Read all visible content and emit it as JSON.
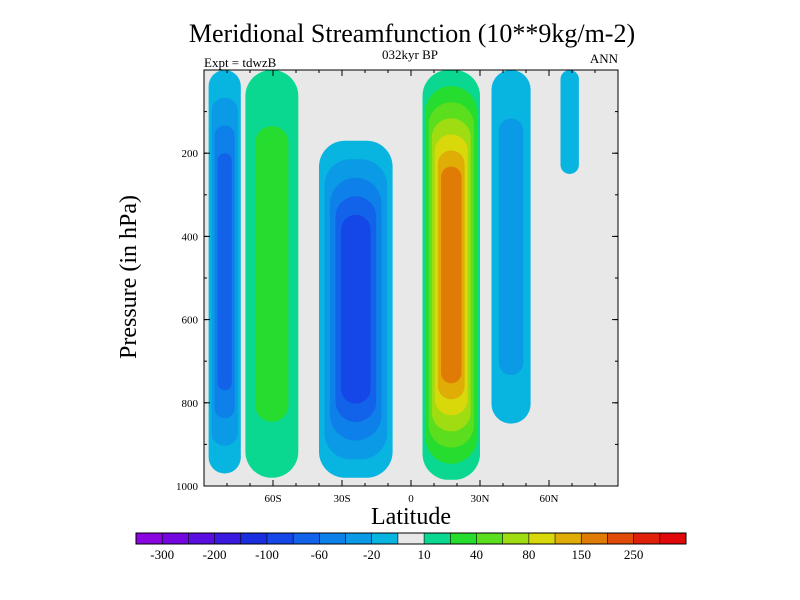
{
  "chart_data": {
    "type": "heatmap",
    "title": "Meridional Streamfunction (10**9kg/m-2)",
    "subtitle_center": "032kyr BP",
    "subtitle_left": "Expt = tdwzB",
    "subtitle_right": "ANN",
    "xlabel": "Latitude",
    "ylabel": "Pressure (in hPa)",
    "x_ticks": [
      {
        "value": -60,
        "label": "60S"
      },
      {
        "value": -30,
        "label": "30S"
      },
      {
        "value": 0,
        "label": "0"
      },
      {
        "value": 30,
        "label": "30N"
      },
      {
        "value": 60,
        "label": "60N"
      }
    ],
    "y_ticks": [
      {
        "value": 200,
        "label": "200"
      },
      {
        "value": 400,
        "label": "400"
      },
      {
        "value": 600,
        "label": "600"
      },
      {
        "value": 800,
        "label": "800"
      },
      {
        "value": 1000,
        "label": "1000"
      }
    ],
    "xlim": [
      -90,
      90
    ],
    "ylim": [
      0,
      1000
    ],
    "y_inverted": true,
    "colorbar": {
      "levels": [
        -300,
        -250,
        -200,
        -150,
        -100,
        -80,
        -60,
        -40,
        -20,
        -10,
        10,
        20,
        40,
        60,
        80,
        100,
        150,
        200,
        250,
        300
      ],
      "labels": [
        {
          "after_level": -300,
          "text": "-300"
        },
        {
          "after_level": -200,
          "text": "-200"
        },
        {
          "after_level": -100,
          "text": "-100"
        },
        {
          "after_level": -60,
          "text": "-60"
        },
        {
          "after_level": -20,
          "text": "-20"
        },
        {
          "after_level": 10,
          "text": "10"
        },
        {
          "after_level": 40,
          "text": "40"
        },
        {
          "after_level": 80,
          "text": "80"
        },
        {
          "after_level": 150,
          "text": "150"
        },
        {
          "after_level": 250,
          "text": "250"
        }
      ],
      "colors": [
        "#8a06e0",
        "#7406e0",
        "#5a0ee0",
        "#3a1ae0",
        "#1a2ee0",
        "#1446e8",
        "#1262ea",
        "#0e80ea",
        "#0a9ae6",
        "#08b4e0",
        "#e8e8e8",
        "#0ad890",
        "#26dc2e",
        "#5ade1e",
        "#a0dc12",
        "#d8d80a",
        "#e0ac06",
        "#e07c06",
        "#e04c08",
        "#e02008",
        "#e00808"
      ]
    },
    "fields": [
      {
        "name": "southern-polar-cell",
        "sign": "negative",
        "core_value": -60,
        "band": {
          "top_p": 0,
          "bottom_p": 970,
          "left_lat": -88,
          "right_lat": -74
        }
      },
      {
        "name": "southern-ferrel-cell",
        "sign": "positive",
        "core_value": 20,
        "band": {
          "top_p": 0,
          "bottom_p": 980,
          "left_lat": -72,
          "right_lat": -49
        }
      },
      {
        "name": "southern-hadley-cell",
        "sign": "negative",
        "core_value": -80,
        "band": {
          "top_p": 170,
          "bottom_p": 980,
          "left_lat": -40,
          "right_lat": -8
        }
      },
      {
        "name": "northern-hadley-cell",
        "sign": "positive",
        "core_value": 150,
        "band": {
          "top_p": 0,
          "bottom_p": 985,
          "left_lat": 5,
          "right_lat": 30
        }
      },
      {
        "name": "northern-ferrel-cell",
        "sign": "negative",
        "core_value": -20,
        "band": {
          "top_p": 0,
          "bottom_p": 850,
          "left_lat": 35,
          "right_lat": 52
        }
      },
      {
        "name": "northern-polar-cell",
        "sign": "negative",
        "core_value": -10,
        "band": {
          "top_p": 0,
          "bottom_p": 250,
          "left_lat": 65,
          "right_lat": 73
        }
      }
    ]
  }
}
